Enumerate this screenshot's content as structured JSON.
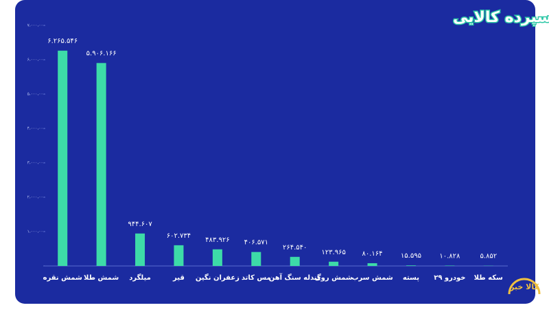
{
  "chart_data": {
    "type": "bar",
    "title": "آمار معاملات هفتگی حجم گواهی های سپرده کالایی",
    "categories": [
      "شمش نقره",
      "شمش طلا",
      "میلگرد",
      "قیر",
      "زعفران نگین",
      "مس کاتد",
      "گندله سنگ آهن",
      "شمش روی",
      "شمش سرب",
      "پسته",
      "خودرو ۲۹",
      "سکه طلا"
    ],
    "values": [
      6265546,
      5906166,
      944607,
      602734,
      483926,
      406571,
      264540,
      123965,
      80164,
      15595,
      10828,
      5852
    ],
    "value_labels": [
      "۶.۲۶۵.۵۴۶",
      "۵.۹۰۶.۱۶۶",
      "۹۴۴.۶۰۷",
      "۶۰۲.۷۳۴",
      "۴۸۳.۹۲۶",
      "۴۰۶.۵۷۱",
      "۲۶۴.۵۴۰",
      "۱۲۳.۹۶۵",
      "۸۰.۱۶۴",
      "۱۵.۵۹۵",
      "۱۰.۸۲۸",
      "۵.۸۵۲"
    ],
    "color": "#3ddba8",
    "ylim": [
      0,
      7000000
    ],
    "yticks": [
      {
        "value": 0,
        "label": "۰"
      },
      {
        "value": 1000000,
        "label": "۱،۰۰۰،۰۰۰"
      },
      {
        "value": 2000000,
        "label": "۲،۰۰۰،۰۰۰"
      },
      {
        "value": 3000000,
        "label": "۳،۰۰۰،۰۰۰"
      },
      {
        "value": 4000000,
        "label": "۴،۰۰۰،۰۰۰"
      },
      {
        "value": 5000000,
        "label": "۵،۰۰۰،۰۰۰"
      },
      {
        "value": 6000000,
        "label": "۶،۰۰۰،۰۰۰"
      },
      {
        "value": 7000000,
        "label": "۷،۰۰۰،۰۰۰"
      }
    ],
    "grid": false,
    "logo": "کالا خبر"
  }
}
